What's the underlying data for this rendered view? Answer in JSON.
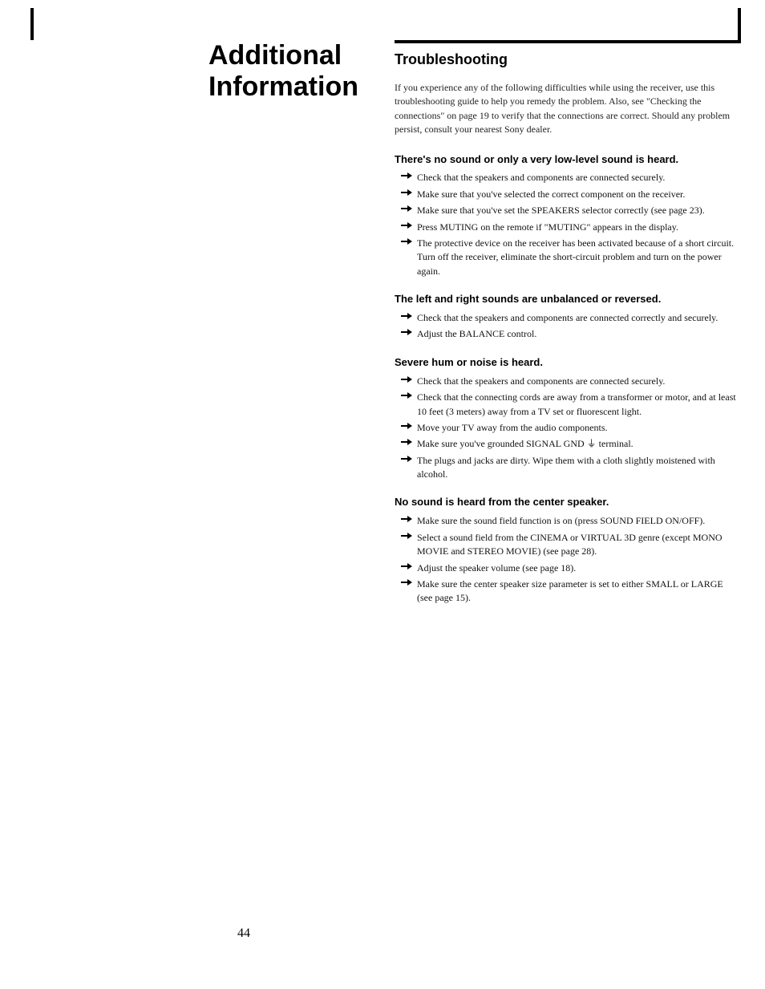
{
  "page_number": "44",
  "chapter_title_line1": "Additional",
  "chapter_title_line2": "Information",
  "section_title": "Troubleshooting",
  "intro": "If you experience any of the following difficulties while using the receiver, use this troubleshooting guide to help you remedy the problem. Also, see \"Checking the connections\" on page 19 to verify that the connections are correct. Should any problem persist, consult your nearest Sony dealer.",
  "problems": [
    {
      "title": "There's no sound or only a very low-level sound is heard.",
      "remedies": [
        "Check that the speakers and components are connected securely.",
        "Make sure that you've selected the correct component on the receiver.",
        "Make sure that you've set the SPEAKERS selector correctly (see page 23).",
        "Press MUTING on the remote if \"MUTING\" appears in the display.",
        "The protective device on the receiver has been activated because of a short circuit. Turn off the receiver, eliminate the short-circuit problem and turn on the power again."
      ]
    },
    {
      "title": "The left and right sounds are unbalanced or reversed.",
      "remedies": [
        "Check that the speakers and components are connected correctly and securely.",
        "Adjust the BALANCE control."
      ]
    },
    {
      "title": "Severe hum or noise is heard.",
      "remedies": [
        "Check that the speakers and components are connected securely.",
        "Check that the connecting cords are away from a transformer or motor, and at least 10 feet (3 meters) away from a TV set or fluorescent light.",
        "Move your TV away from the audio components.",
        "Make sure you've grounded SIGNAL GND ⏚ terminal.",
        "The plugs and jacks are dirty. Wipe them with a cloth slightly moistened with alcohol."
      ]
    },
    {
      "title": "No sound is heard from the center speaker.",
      "remedies": [
        "Make sure the sound field function is on (press SOUND FIELD ON/OFF).",
        "Select a sound field from the CINEMA or VIRTUAL 3D genre (except MONO MOVIE and STEREO MOVIE) (see page 28).",
        "Adjust the speaker volume (see page 18).",
        "Make sure the center speaker size parameter is set to either SMALL or LARGE (see page 15)."
      ]
    }
  ]
}
